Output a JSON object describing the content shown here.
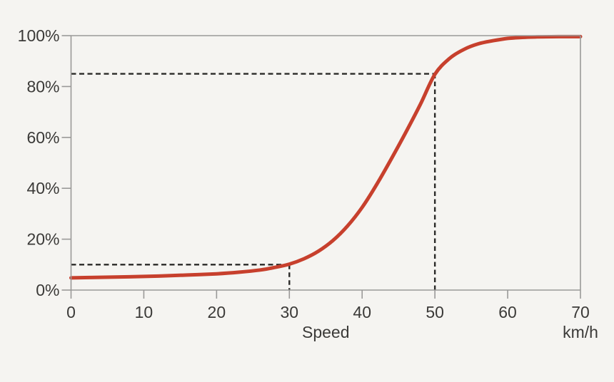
{
  "chart_data": {
    "type": "line",
    "title": "",
    "xlabel": "Speed",
    "x_unit_label": "km/h",
    "ylabel": "",
    "xlim": [
      0,
      70
    ],
    "ylim": [
      0,
      100
    ],
    "x_ticks": [
      0,
      10,
      20,
      30,
      40,
      50,
      60,
      70
    ],
    "x_tick_labels": [
      "0",
      "10",
      "20",
      "30",
      "40",
      "50",
      "60",
      "70"
    ],
    "y_ticks": [
      0,
      20,
      40,
      60,
      80,
      100
    ],
    "y_tick_labels": [
      "0%",
      "20%",
      "40%",
      "60%",
      "80%",
      "100%"
    ],
    "grid": false,
    "legend": "none",
    "frame": true,
    "series": [
      {
        "name": "percentage-vs-speed",
        "color": "#c7402d",
        "x": [
          0,
          4,
          8,
          12,
          16,
          20,
          23,
          26,
          28,
          30,
          32,
          34,
          36,
          38,
          40,
          42,
          44,
          46,
          48,
          50,
          52,
          54,
          56,
          58,
          60,
          62,
          64,
          67,
          70
        ],
        "y": [
          4.8,
          5.0,
          5.2,
          5.5,
          5.9,
          6.4,
          7.0,
          7.9,
          8.9,
          10.2,
          12.3,
          15.3,
          19.5,
          25.2,
          32.5,
          41.5,
          51.5,
          62.0,
          73.0,
          84.8,
          91.0,
          94.6,
          96.8,
          98.0,
          98.9,
          99.3,
          99.5,
          99.6,
          99.6
        ]
      }
    ],
    "reference_markers": [
      {
        "x": 30,
        "y": 10,
        "style": "dashed"
      },
      {
        "x": 50,
        "y": 85,
        "style": "dashed"
      }
    ],
    "colors": {
      "background": "#f5f4f1",
      "axis": "#9a9998",
      "text": "#3b3a38",
      "dashed": "#2a2a28",
      "curve": "#c7402d"
    }
  }
}
